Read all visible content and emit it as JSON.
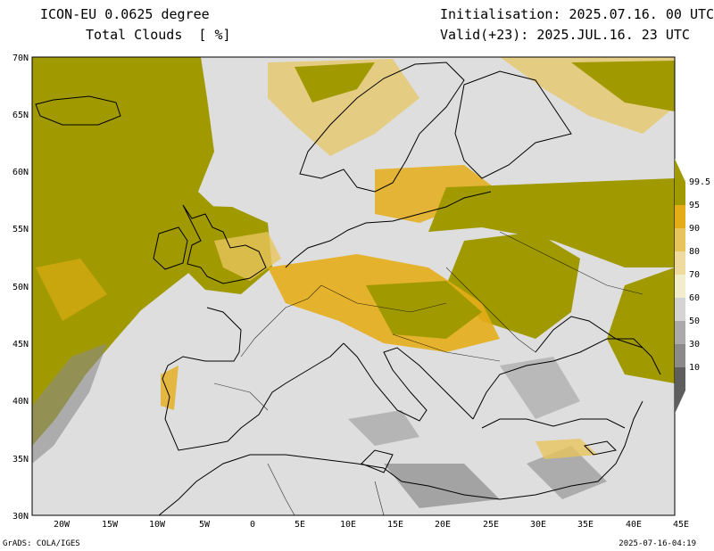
{
  "header": {
    "model": "ICON-EU 0.0625 degree",
    "field": "Total Clouds  [ %]",
    "init": "Initialisation: 2025.07.16. 00 UTC",
    "valid": "Valid(+23): 2025.JUL.16. 23 UTC"
  },
  "axes": {
    "lat_labels": [
      "70N",
      "65N",
      "60N",
      "55N",
      "50N",
      "45N",
      "40N",
      "35N",
      "30N"
    ],
    "lon_labels": [
      "20W",
      "15W",
      "10W",
      "5W",
      "0",
      "5E",
      "10E",
      "15E",
      "20E",
      "25E",
      "30E",
      "35E",
      "40E",
      "45E"
    ]
  },
  "colorbar": {
    "labels": [
      "99.5",
      "95",
      "90",
      "80",
      "70",
      "60",
      "50",
      "30",
      "10"
    ],
    "colors": [
      "#a09a00",
      "#e4ad18",
      "#e8c45c",
      "#efdba0",
      "#f2eecb",
      "#d4d4d4",
      "#aaaaaa",
      "#8a8a8a",
      "#5e5e5e"
    ]
  },
  "footer": {
    "left": "GrADS: COLA/IGES",
    "right": "2025-07-16-04:19"
  }
}
